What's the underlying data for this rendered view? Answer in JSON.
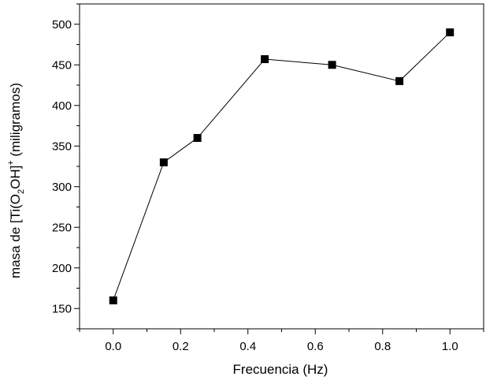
{
  "chart_data": {
    "type": "line",
    "title": "",
    "xlabel": "Frecuencia (Hz)",
    "ylabel": {
      "before": "masa de [Ti(O",
      "sub": "2",
      "middle": "OH]",
      "sup": "+",
      "after": " (miligramos)"
    },
    "xlim": [
      -0.1,
      1.1
    ],
    "ylim": [
      125,
      525
    ],
    "x_ticks": [
      0.0,
      0.2,
      0.4,
      0.6,
      0.8,
      1.0
    ],
    "x_tick_labels": [
      "0.0",
      "0.2",
      "0.4",
      "0.6",
      "0.8",
      "1.0"
    ],
    "y_ticks": [
      150,
      200,
      250,
      300,
      350,
      400,
      450,
      500
    ],
    "y_tick_labels": [
      "150",
      "200",
      "250",
      "300",
      "350",
      "400",
      "450",
      "500"
    ],
    "grid": false,
    "legend": false,
    "marker": "square",
    "color": "#000000",
    "series": [
      {
        "x": [
          0.0,
          0.15,
          0.25,
          0.45,
          0.65,
          0.85,
          1.0
        ],
        "y": [
          160,
          330,
          360,
          457,
          450,
          430,
          490
        ]
      }
    ]
  }
}
